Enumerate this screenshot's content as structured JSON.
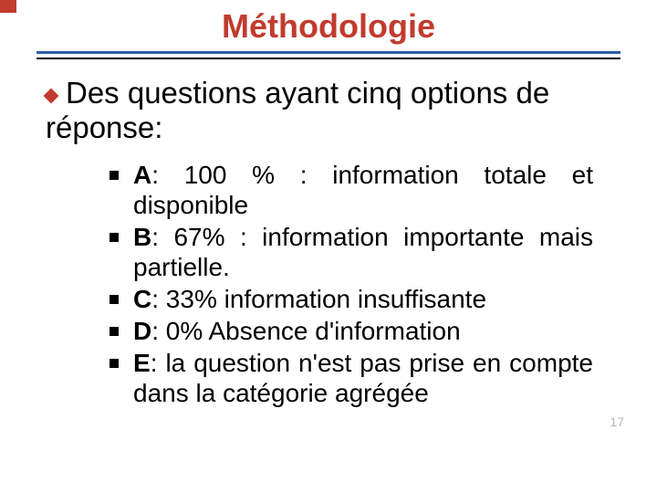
{
  "title": "Méthodologie",
  "title_color": "#c13b2e",
  "lead_text": "Des questions ayant cinq options de réponse:",
  "lead_bullet_color": "#c13b2e",
  "rule_colors": {
    "upper": "#2a5fa5",
    "lower": "#000000"
  },
  "items": [
    {
      "label": "A",
      "rest": ": 100 % : information totale et disponible"
    },
    {
      "label": "B",
      "rest": ": 67% : information importante mais partielle."
    },
    {
      "label": "C",
      "rest": ": 33% information insuffisante"
    },
    {
      "label": "D",
      "rest": ": 0% Absence d'information"
    },
    {
      "label": "E",
      "rest": ": la question n'est pas prise en compte dans la catégorie agrégée"
    }
  ],
  "square_bullet_color": "#000000",
  "page_number": "17",
  "page_number_color": "#b9b9b9",
  "background_color": "#ffffff",
  "fonts": {
    "family": "Segoe UI, Arial, sans-serif",
    "title_size_pt": 36,
    "lead_size_pt": 33,
    "item_size_pt": 28
  }
}
